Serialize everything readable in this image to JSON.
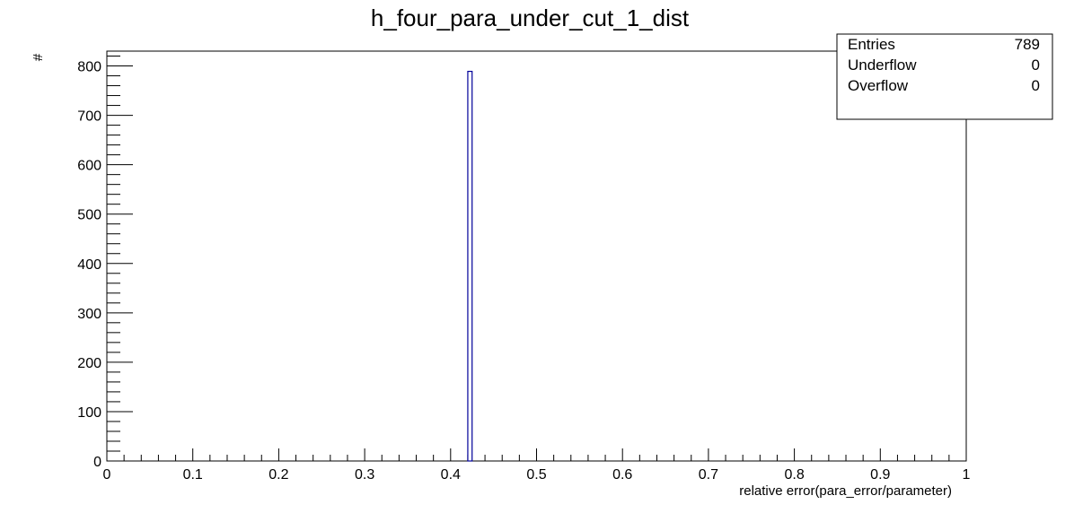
{
  "chart_data": {
    "type": "bar",
    "title": "h_four_para_under_cut_1_dist",
    "xlabel": "relative error(para_error/parameter)",
    "ylabel": "#",
    "xlim": [
      0,
      1
    ],
    "ylim": [
      0,
      830
    ],
    "x_ticks": [
      "0",
      "0.1",
      "0.2",
      "0.3",
      "0.4",
      "0.5",
      "0.6",
      "0.7",
      "0.8",
      "0.9",
      "1"
    ],
    "y_ticks": [
      "0",
      "100",
      "200",
      "300",
      "400",
      "500",
      "600",
      "700",
      "800"
    ],
    "bins": [
      {
        "x_low": 0.42,
        "x_high": 0.425,
        "value": 789
      }
    ],
    "bar_color": "#000099",
    "grid": false,
    "legend": "none",
    "stats_box": {
      "placement": "top-right",
      "rows": [
        {
          "label": "Entries",
          "value": "789"
        },
        {
          "label": "Underflow",
          "value": "0"
        },
        {
          "label": "Overflow",
          "value": "0"
        }
      ]
    }
  }
}
